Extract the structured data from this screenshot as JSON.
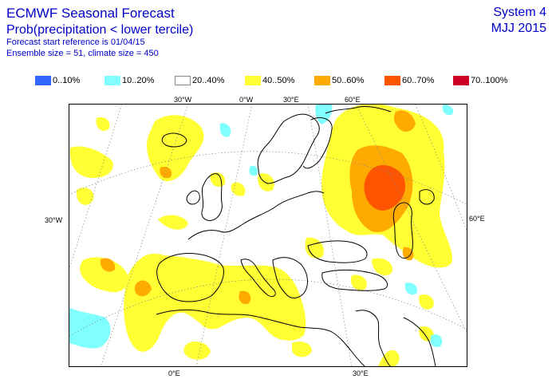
{
  "header": {
    "title": "ECMWF Seasonal Forecast",
    "subtitle": "Prob(precipitation < lower tercile)",
    "forecast_ref": "Forecast start reference is 01/04/15",
    "ensemble": "Ensemble size = 51, climate size = 450",
    "system": "System 4",
    "period": "MJJ 2015"
  },
  "legend": [
    {
      "label": "0..10%",
      "color": "#3366ff"
    },
    {
      "label": "10..20%",
      "color": "#80ffff"
    },
    {
      "label": "20..40%",
      "color": "#ffffff"
    },
    {
      "label": "40..50%",
      "color": "#ffff33"
    },
    {
      "label": "50..60%",
      "color": "#ffaa00"
    },
    {
      "label": "60..70%",
      "color": "#ff5500"
    },
    {
      "label": "70..100%",
      "color": "#cc0022"
    }
  ],
  "map": {
    "ticks_top": [
      "30°W",
      "0°W",
      "30°E",
      "60°E"
    ],
    "ticks_bottom": [
      "0°E",
      "30°E"
    ],
    "tick_left": "30°W",
    "tick_right": "60°E"
  }
}
